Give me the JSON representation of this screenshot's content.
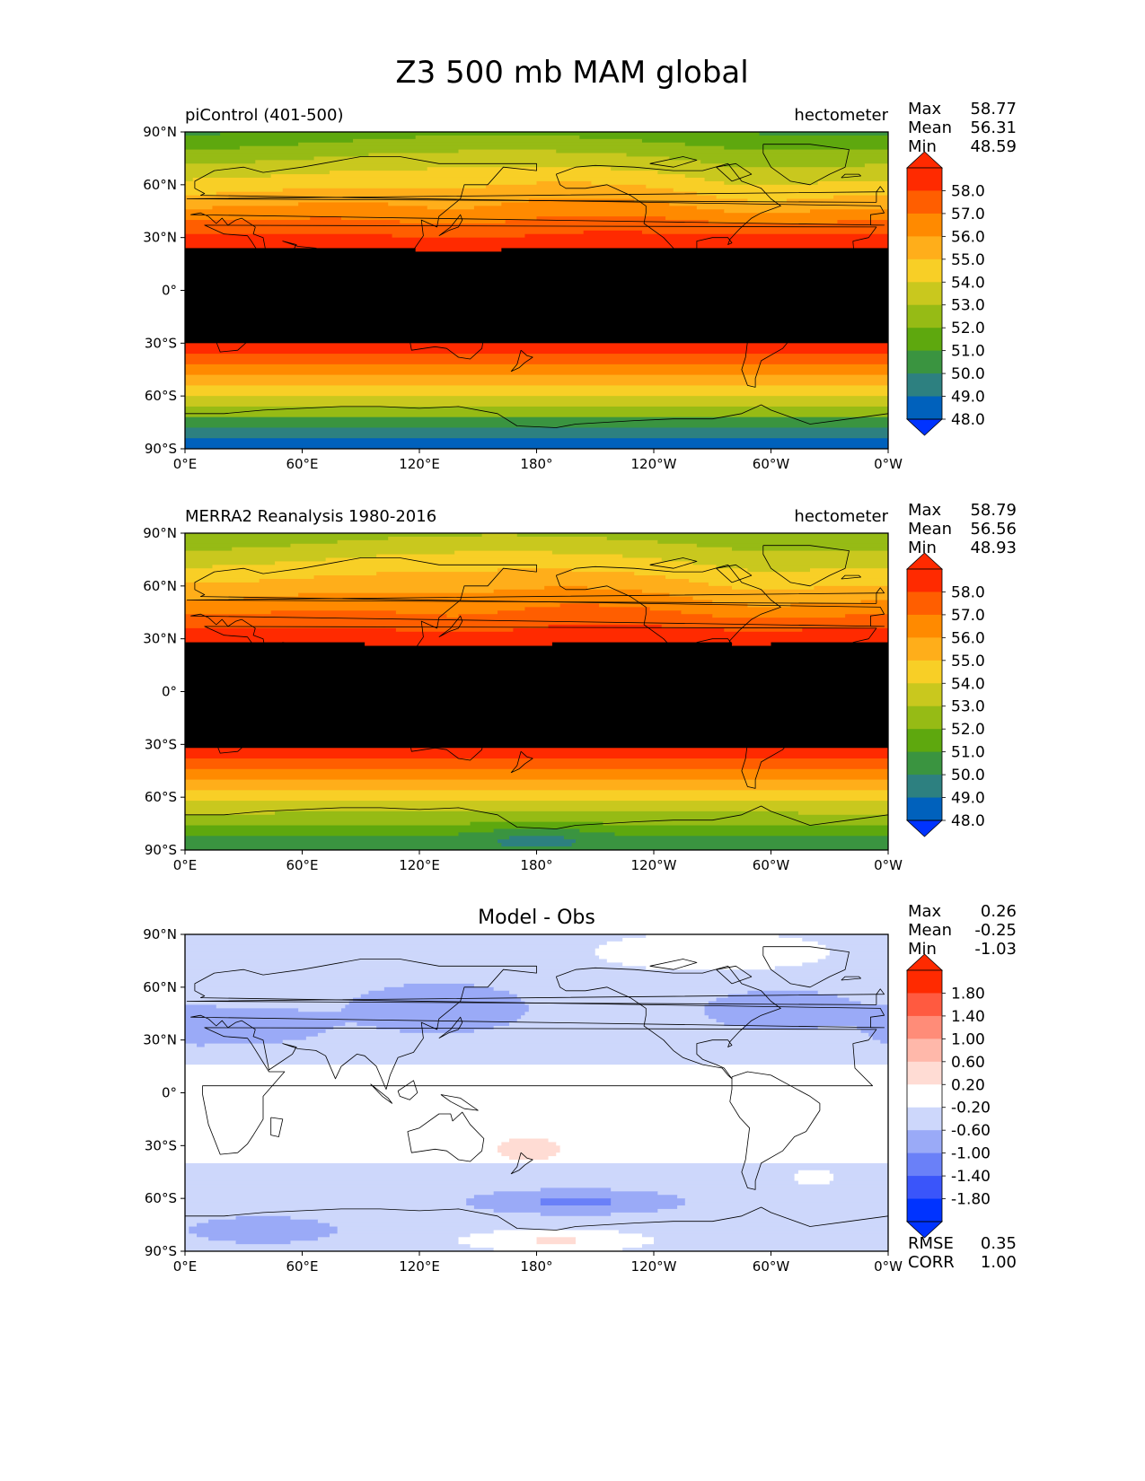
{
  "title": "Z3 500 mb MAM global",
  "x_ticks": [
    "0°E",
    "60°E",
    "120°E",
    "180°",
    "120°W",
    "60°W",
    "0°W"
  ],
  "y_ticks": [
    "90°N",
    "60°N",
    "30°N",
    "0°",
    "30°S",
    "60°S",
    "90°S"
  ],
  "stat_labels": {
    "max": "Max",
    "mean": "Mean",
    "min": "Min"
  },
  "panels": [
    {
      "id": "picontrol",
      "left_title": "piControl (401-500)",
      "center_title": "",
      "units": "hectometer",
      "stats": {
        "max": "58.77",
        "mean": "56.31",
        "min": "48.59"
      },
      "colorbar": {
        "labels": [
          "58.0",
          "57.0",
          "56.0",
          "55.0",
          "54.0",
          "53.0",
          "52.0",
          "51.0",
          "50.0",
          "49.0",
          "48.0"
        ],
        "colors": [
          "#ff2a00",
          "#ff5e00",
          "#ff8a00",
          "#ffae1a",
          "#f8cf26",
          "#c9c81e",
          "#96bb15",
          "#5ea80e",
          "#3a9440",
          "#2d8080",
          "#0061bc"
        ],
        "over": "#ff2a00",
        "under": "#0033ff"
      },
      "levels": [
        48,
        49,
        50,
        51,
        52,
        53,
        54,
        55,
        56,
        57,
        58
      ],
      "field": "picontrol"
    },
    {
      "id": "merra2",
      "left_title": "MERRA2 Reanalysis 1980-2016",
      "center_title": "",
      "units": "hectometer",
      "stats": {
        "max": "58.79",
        "mean": "56.56",
        "min": "48.93"
      },
      "colorbar": {
        "labels": [
          "58.0",
          "57.0",
          "56.0",
          "55.0",
          "54.0",
          "53.0",
          "52.0",
          "51.0",
          "50.0",
          "49.0",
          "48.0"
        ],
        "colors": [
          "#ff2a00",
          "#ff5e00",
          "#ff8a00",
          "#ffae1a",
          "#f8cf26",
          "#c9c81e",
          "#96bb15",
          "#5ea80e",
          "#3a9440",
          "#2d8080",
          "#0061bc"
        ],
        "over": "#ff2a00",
        "under": "#0033ff"
      },
      "levels": [
        48,
        49,
        50,
        51,
        52,
        53,
        54,
        55,
        56,
        57,
        58
      ],
      "field": "merra2"
    },
    {
      "id": "diff",
      "left_title": "",
      "center_title": "Model - Obs",
      "units": "",
      "stats": {
        "max": "0.26",
        "mean": "-0.25",
        "min": "-1.03"
      },
      "colorbar": {
        "labels": [
          "1.80",
          "1.40",
          "1.00",
          "0.60",
          "0.20",
          "-0.20",
          "-0.60",
          "-1.00",
          "-1.40",
          "-1.80"
        ],
        "colors": [
          "#ff2a00",
          "#ff5a40",
          "#ff8c78",
          "#ffb8aa",
          "#ffdcd4",
          "#ffffff",
          "#cdd7fb",
          "#9aaaf7",
          "#6a80f8",
          "#3a55fa",
          "#0033ff"
        ],
        "over": "#ff2a00",
        "under": "#0033ff"
      },
      "levels": [
        -1.8,
        -1.4,
        -1.0,
        -0.6,
        -0.2,
        0.2,
        0.6,
        1.0,
        1.4,
        1.8
      ],
      "field": "diff",
      "metrics": [
        {
          "label": "RMSE",
          "value": "0.35"
        },
        {
          "label": "CORR",
          "value": "1.00"
        }
      ]
    }
  ]
}
